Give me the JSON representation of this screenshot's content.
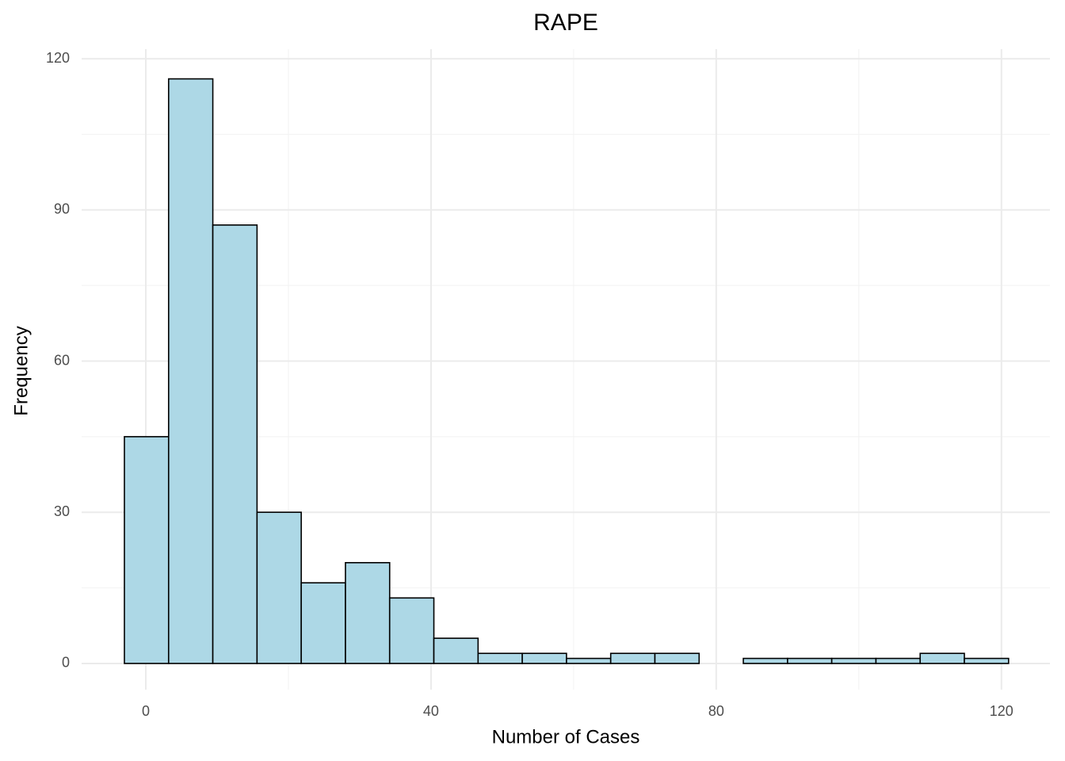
{
  "chart_data": {
    "type": "histogram",
    "title": "RAPE",
    "x_label": "Number of Cases",
    "y_label": "Frequency",
    "bins": [
      -3,
      3.2,
      9.4,
      15.6,
      21.8,
      28,
      34.2,
      40.4,
      46.6,
      52.8,
      59,
      65.2,
      71.4,
      77.6,
      83.8,
      90,
      96.2,
      102.4,
      108.6,
      114.8,
      121
    ],
    "counts": [
      45,
      116,
      87,
      30,
      16,
      20,
      13,
      5,
      2,
      2,
      1,
      2,
      2,
      0,
      1,
      1,
      1,
      1,
      2,
      1
    ],
    "color": "#add8e6",
    "edge_color": "#000000",
    "xlim": [
      -9,
      126.8
    ],
    "ylim": [
      -5.2,
      121.9
    ],
    "xticks": [
      0,
      40,
      80,
      120
    ],
    "yticks": [
      0,
      30,
      60,
      90,
      120
    ],
    "minor_xticks": [
      20,
      60,
      100
    ],
    "minor_yticks": [
      15,
      45,
      75,
      105
    ],
    "grid": true
  }
}
